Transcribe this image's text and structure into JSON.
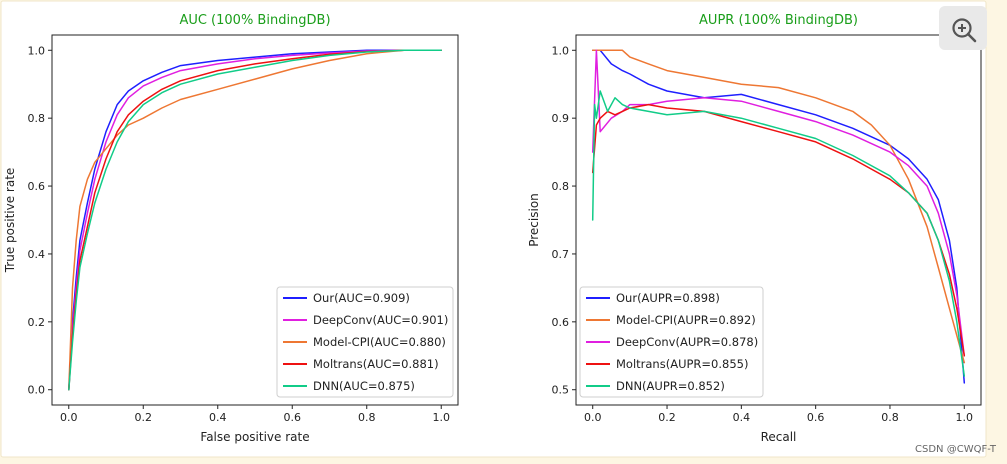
{
  "watermark": "CSDN @CWQF-T",
  "zoom_icon": "zoom-in-icon",
  "chart_data": [
    {
      "type": "line",
      "title": "AUC (100% BindingDB)",
      "title_color": "#1a9e1a",
      "xlabel": "False positive rate",
      "ylabel": "True positive rate",
      "xlim": [
        0,
        1
      ],
      "ylim": [
        0,
        1
      ],
      "xticks": [
        "0.0",
        "0.2",
        "0.4",
        "0.6",
        "0.8",
        "1.0"
      ],
      "yticks": [
        "0.0",
        "0.2",
        "0.4",
        "0.6",
        "0.8",
        "1.0"
      ],
      "grid": false,
      "legend_position": "lower-right",
      "series": [
        {
          "name": "Our(AUC=0.909)",
          "color": "#1f1fff",
          "x": [
            0,
            0.01,
            0.02,
            0.03,
            0.05,
            0.07,
            0.1,
            0.13,
            0.16,
            0.2,
            0.25,
            0.3,
            0.4,
            0.5,
            0.6,
            0.7,
            0.8,
            0.9,
            1.0
          ],
          "y": [
            0,
            0.2,
            0.33,
            0.44,
            0.55,
            0.65,
            0.76,
            0.84,
            0.88,
            0.91,
            0.935,
            0.955,
            0.97,
            0.98,
            0.99,
            0.995,
            1.0,
            1.0,
            1.0
          ]
        },
        {
          "name": "DeepConv(AUC=0.901)",
          "color": "#e01fe0",
          "x": [
            0,
            0.01,
            0.02,
            0.03,
            0.05,
            0.07,
            0.1,
            0.13,
            0.16,
            0.2,
            0.25,
            0.3,
            0.4,
            0.5,
            0.6,
            0.7,
            0.8,
            0.9,
            1.0
          ],
          "y": [
            0,
            0.18,
            0.3,
            0.41,
            0.52,
            0.62,
            0.73,
            0.81,
            0.86,
            0.895,
            0.92,
            0.94,
            0.96,
            0.975,
            0.985,
            0.992,
            0.998,
            1.0,
            1.0
          ]
        },
        {
          "name": "Model-CPI(AUC=0.880)",
          "color": "#ee7733",
          "x": [
            0,
            0.01,
            0.02,
            0.03,
            0.05,
            0.07,
            0.1,
            0.13,
            0.16,
            0.2,
            0.25,
            0.3,
            0.4,
            0.5,
            0.6,
            0.7,
            0.8,
            0.9,
            1.0
          ],
          "y": [
            0,
            0.3,
            0.44,
            0.54,
            0.62,
            0.67,
            0.71,
            0.75,
            0.78,
            0.8,
            0.83,
            0.855,
            0.885,
            0.915,
            0.945,
            0.97,
            0.99,
            1.0,
            1.0
          ]
        },
        {
          "name": "Moltrans(AUC=0.881)",
          "color": "#ee1111",
          "x": [
            0,
            0.01,
            0.02,
            0.03,
            0.05,
            0.07,
            0.1,
            0.13,
            0.16,
            0.2,
            0.25,
            0.3,
            0.4,
            0.5,
            0.6,
            0.7,
            0.8,
            0.9,
            1.0
          ],
          "y": [
            0,
            0.16,
            0.28,
            0.38,
            0.48,
            0.58,
            0.68,
            0.76,
            0.81,
            0.85,
            0.885,
            0.91,
            0.94,
            0.96,
            0.975,
            0.988,
            0.996,
            1.0,
            1.0
          ]
        },
        {
          "name": "DNN(AUC=0.875)",
          "color": "#11cc88",
          "x": [
            0,
            0.01,
            0.02,
            0.03,
            0.05,
            0.07,
            0.1,
            0.13,
            0.16,
            0.2,
            0.25,
            0.3,
            0.4,
            0.5,
            0.6,
            0.7,
            0.8,
            0.9,
            1.0
          ],
          "y": [
            0,
            0.14,
            0.26,
            0.36,
            0.46,
            0.55,
            0.65,
            0.73,
            0.79,
            0.84,
            0.875,
            0.9,
            0.93,
            0.95,
            0.97,
            0.985,
            0.995,
            1.0,
            1.0
          ]
        }
      ]
    },
    {
      "type": "line",
      "title": "AUPR (100% BindingDB)",
      "title_color": "#1a9e1a",
      "xlabel": "Recall",
      "ylabel": "Precision",
      "xlim": [
        0,
        1
      ],
      "ylim": [
        0.5,
        1
      ],
      "xticks": [
        "0.0",
        "0.2",
        "0.4",
        "0.6",
        "0.8",
        "1.0"
      ],
      "yticks": [
        "0.5",
        "0.6",
        "0.7",
        "0.8",
        "0.9",
        "1.0"
      ],
      "grid": false,
      "legend_position": "lower-left",
      "series": [
        {
          "name": "Our(AUPR=0.898)",
          "color": "#1f1fff",
          "x": [
            0,
            0.02,
            0.05,
            0.08,
            0.1,
            0.15,
            0.2,
            0.3,
            0.4,
            0.5,
            0.6,
            0.7,
            0.8,
            0.85,
            0.9,
            0.93,
            0.96,
            0.98,
            1.0
          ],
          "y": [
            1.0,
            1.0,
            0.98,
            0.97,
            0.965,
            0.95,
            0.94,
            0.93,
            0.935,
            0.92,
            0.905,
            0.885,
            0.86,
            0.84,
            0.81,
            0.78,
            0.72,
            0.65,
            0.51
          ]
        },
        {
          "name": "Model-CPI(AUPR=0.892)",
          "color": "#ee7733",
          "x": [
            0,
            0.02,
            0.05,
            0.08,
            0.1,
            0.15,
            0.2,
            0.3,
            0.4,
            0.5,
            0.6,
            0.7,
            0.75,
            0.8,
            0.85,
            0.9,
            0.93,
            0.96,
            0.98,
            1.0
          ],
          "y": [
            1.0,
            1.0,
            1.0,
            1.0,
            0.99,
            0.98,
            0.97,
            0.96,
            0.95,
            0.945,
            0.93,
            0.91,
            0.89,
            0.86,
            0.81,
            0.74,
            0.68,
            0.62,
            0.58,
            0.54
          ]
        },
        {
          "name": "DeepConv(AUPR=0.878)",
          "color": "#e01fe0",
          "x": [
            0,
            0.01,
            0.02,
            0.05,
            0.08,
            0.1,
            0.15,
            0.2,
            0.3,
            0.4,
            0.5,
            0.6,
            0.7,
            0.8,
            0.85,
            0.9,
            0.93,
            0.96,
            0.98,
            1.0
          ],
          "y": [
            0.85,
            1.0,
            0.88,
            0.9,
            0.91,
            0.92,
            0.92,
            0.925,
            0.93,
            0.925,
            0.91,
            0.895,
            0.875,
            0.85,
            0.83,
            0.8,
            0.76,
            0.7,
            0.64,
            0.55
          ]
        },
        {
          "name": "Moltrans(AUPR=0.855)",
          "color": "#ee1111",
          "x": [
            0,
            0.01,
            0.02,
            0.04,
            0.06,
            0.08,
            0.1,
            0.15,
            0.2,
            0.3,
            0.4,
            0.5,
            0.6,
            0.7,
            0.8,
            0.85,
            0.9,
            0.93,
            0.96,
            0.98,
            1.0
          ],
          "y": [
            0.82,
            0.89,
            0.9,
            0.91,
            0.905,
            0.91,
            0.915,
            0.92,
            0.915,
            0.91,
            0.895,
            0.88,
            0.865,
            0.84,
            0.81,
            0.79,
            0.76,
            0.72,
            0.67,
            0.62,
            0.55
          ]
        },
        {
          "name": "DNN(AUPR=0.852)",
          "color": "#11cc88",
          "x": [
            0,
            0.005,
            0.01,
            0.02,
            0.04,
            0.06,
            0.08,
            0.1,
            0.15,
            0.2,
            0.3,
            0.4,
            0.5,
            0.6,
            0.7,
            0.8,
            0.85,
            0.9,
            0.93,
            0.96,
            0.98,
            1.0
          ],
          "y": [
            0.75,
            0.92,
            0.9,
            0.94,
            0.91,
            0.93,
            0.92,
            0.915,
            0.91,
            0.905,
            0.91,
            0.9,
            0.885,
            0.87,
            0.845,
            0.815,
            0.79,
            0.76,
            0.72,
            0.66,
            0.6,
            0.52
          ]
        }
      ]
    }
  ]
}
